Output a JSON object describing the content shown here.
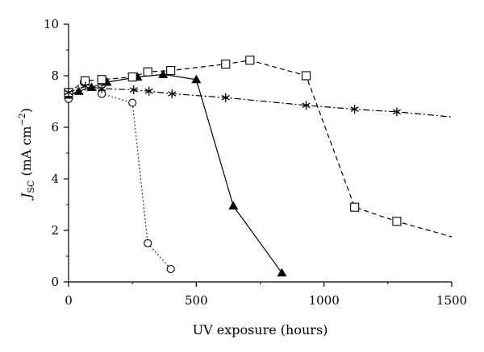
{
  "chart_data": {
    "type": "line",
    "xlabel": "UV exposure (hours)",
    "ylabel": {
      "main": "J",
      "sub": "SC",
      "unit_pre": " (mA cm",
      "unit_sup": "−2",
      "unit_post": ")"
    },
    "xlim": [
      0,
      1500
    ],
    "ylim": [
      0,
      10
    ],
    "xticks": [
      0,
      500,
      1000,
      1500
    ],
    "yticks": [
      0,
      2,
      4,
      6,
      8,
      10
    ],
    "grid": false,
    "series": [
      {
        "marker": "circle-open",
        "line": "dotted",
        "x": [
          0,
          60,
          130,
          250,
          310,
          400
        ],
        "y": [
          7.1,
          7.75,
          7.3,
          6.95,
          1.5,
          0.5
        ]
      },
      {
        "marker": "triangle-filled",
        "line": "solid",
        "x": [
          0,
          40,
          90,
          150,
          270,
          370,
          500,
          645,
          835
        ],
        "y": [
          7.25,
          7.4,
          7.55,
          7.75,
          7.95,
          8.05,
          7.85,
          2.95,
          0.35
        ]
      },
      {
        "marker": "square-open",
        "line": "dashed",
        "x": [
          0,
          65,
          130,
          250,
          310,
          400,
          615,
          710,
          930,
          1120,
          1285,
          1500
        ],
        "y": [
          7.35,
          7.8,
          7.85,
          7.95,
          8.15,
          8.2,
          8.45,
          8.6,
          8.0,
          2.9,
          2.35,
          1.75
        ],
        "marker_count": 11
      },
      {
        "marker": "asterisk",
        "line": "dashdot",
        "x": [
          0,
          65,
          130,
          255,
          315,
          405,
          615,
          930,
          1120,
          1285,
          1500
        ],
        "y": [
          7.35,
          7.6,
          7.5,
          7.45,
          7.4,
          7.3,
          7.15,
          6.85,
          6.7,
          6.6,
          6.4
        ],
        "marker_count": 10
      }
    ]
  }
}
